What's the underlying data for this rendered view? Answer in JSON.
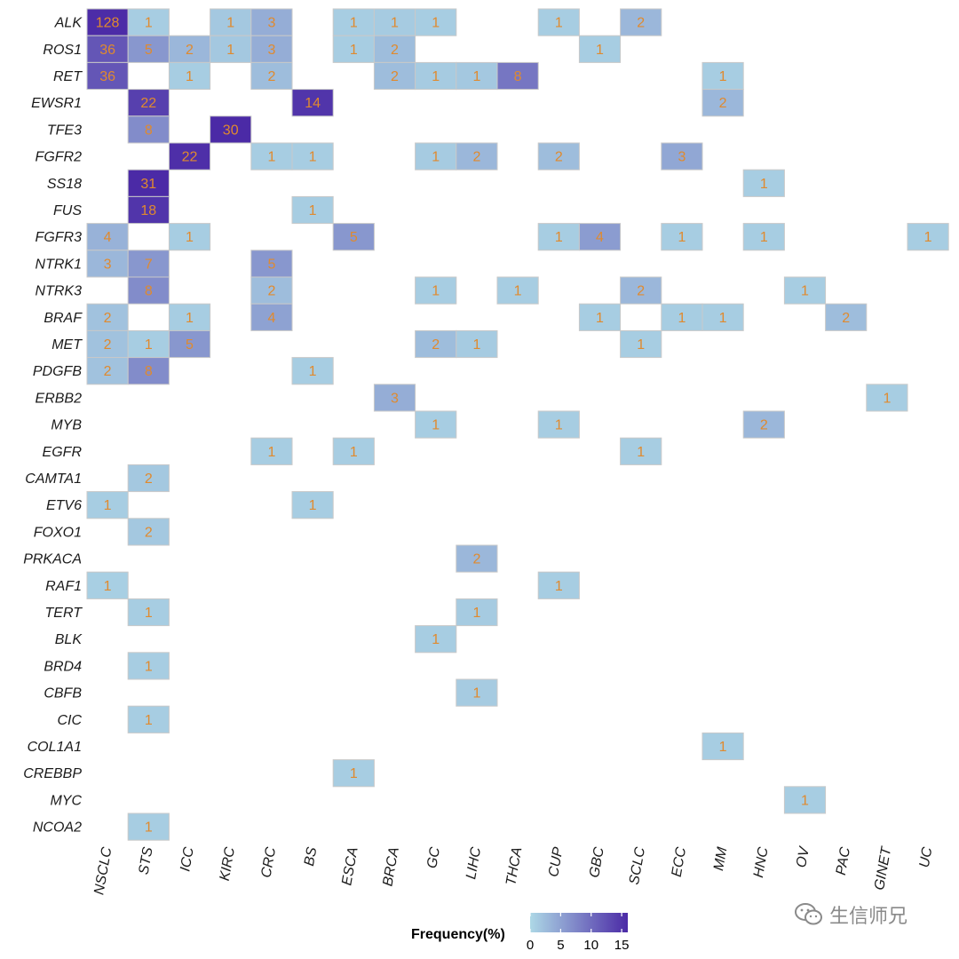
{
  "chart_data": {
    "type": "heatmap",
    "rows": [
      "ALK",
      "ROS1",
      "RET",
      "EWSR1",
      "TFE3",
      "FGFR2",
      "SS18",
      "FUS",
      "FGFR3",
      "NTRK1",
      "NTRK3",
      "BRAF",
      "MET",
      "PDGFB",
      "ERBB2",
      "MYB",
      "EGFR",
      "CAMTA1",
      "ETV6",
      "FOXO1",
      "PRKACA",
      "RAF1",
      "TERT",
      "BLK",
      "BRD4",
      "CBFB",
      "CIC",
      "COL1A1",
      "CREBBP",
      "MYC",
      "NCOA2"
    ],
    "columns": [
      "NSCLC",
      "STS",
      "ICC",
      "KIRC",
      "CRC",
      "BS",
      "ESCA",
      "BRCA",
      "GC",
      "LIHC",
      "THCA",
      "CUP",
      "GBC",
      "SCLC",
      "ECC",
      "MM",
      "HNC",
      "OV",
      "PAC",
      "GINET",
      "UC"
    ],
    "cells": [
      {
        "row": "ALK",
        "col": "NSCLC",
        "count": 128,
        "freq": 15.8
      },
      {
        "row": "ALK",
        "col": "STS",
        "count": 1,
        "freq": 1
      },
      {
        "row": "ALK",
        "col": "KIRC",
        "count": 1,
        "freq": 1.5
      },
      {
        "row": "ALK",
        "col": "CRC",
        "count": 3,
        "freq": 4
      },
      {
        "row": "ALK",
        "col": "ESCA",
        "count": 1,
        "freq": 1
      },
      {
        "row": "ALK",
        "col": "BRCA",
        "count": 1,
        "freq": 1.2
      },
      {
        "row": "ALK",
        "col": "GC",
        "count": 1,
        "freq": 1
      },
      {
        "row": "ALK",
        "col": "CUP",
        "count": 1,
        "freq": 1
      },
      {
        "row": "ALK",
        "col": "SCLC",
        "count": 2,
        "freq": 3
      },
      {
        "row": "ROS1",
        "col": "NSCLC",
        "count": 36,
        "freq": 12
      },
      {
        "row": "ROS1",
        "col": "STS",
        "count": 5,
        "freq": 6
      },
      {
        "row": "ROS1",
        "col": "ICC",
        "count": 2,
        "freq": 3
      },
      {
        "row": "ROS1",
        "col": "KIRC",
        "count": 1,
        "freq": 1.5
      },
      {
        "row": "ROS1",
        "col": "CRC",
        "count": 3,
        "freq": 4
      },
      {
        "row": "ROS1",
        "col": "ESCA",
        "count": 1,
        "freq": 1
      },
      {
        "row": "ROS1",
        "col": "BRCA",
        "count": 2,
        "freq": 2.5
      },
      {
        "row": "ROS1",
        "col": "GBC",
        "count": 1,
        "freq": 1
      },
      {
        "row": "RET",
        "col": "NSCLC",
        "count": 36,
        "freq": 12
      },
      {
        "row": "RET",
        "col": "ICC",
        "count": 1,
        "freq": 1
      },
      {
        "row": "RET",
        "col": "CRC",
        "count": 2,
        "freq": 2.5
      },
      {
        "row": "RET",
        "col": "BRCA",
        "count": 2,
        "freq": 2.5
      },
      {
        "row": "RET",
        "col": "GC",
        "count": 1,
        "freq": 1.2
      },
      {
        "row": "RET",
        "col": "LIHC",
        "count": 1,
        "freq": 1.5
      },
      {
        "row": "RET",
        "col": "THCA",
        "count": 8,
        "freq": 9
      },
      {
        "row": "RET",
        "col": "MM",
        "count": 1,
        "freq": 1
      },
      {
        "row": "EWSR1",
        "col": "STS",
        "count": 22,
        "freq": 14
      },
      {
        "row": "EWSR1",
        "col": "BS",
        "count": 14,
        "freq": 15
      },
      {
        "row": "EWSR1",
        "col": "MM",
        "count": 2,
        "freq": 3
      },
      {
        "row": "TFE3",
        "col": "STS",
        "count": 8,
        "freq": 7
      },
      {
        "row": "TFE3",
        "col": "KIRC",
        "count": 30,
        "freq": 16
      },
      {
        "row": "FGFR2",
        "col": "ICC",
        "count": 22,
        "freq": 15.5
      },
      {
        "row": "FGFR2",
        "col": "CRC",
        "count": 1,
        "freq": 1
      },
      {
        "row": "FGFR2",
        "col": "BS",
        "count": 1,
        "freq": 1
      },
      {
        "row": "FGFR2",
        "col": "GC",
        "count": 1,
        "freq": 1.2
      },
      {
        "row": "FGFR2",
        "col": "LIHC",
        "count": 2,
        "freq": 3
      },
      {
        "row": "FGFR2",
        "col": "CUP",
        "count": 2,
        "freq": 2.5
      },
      {
        "row": "FGFR2",
        "col": "ECC",
        "count": 3,
        "freq": 4.5
      },
      {
        "row": "SS18",
        "col": "STS",
        "count": 31,
        "freq": 16
      },
      {
        "row": "SS18",
        "col": "HNC",
        "count": 1,
        "freq": 1
      },
      {
        "row": "FUS",
        "col": "STS",
        "count": 18,
        "freq": 15
      },
      {
        "row": "FUS",
        "col": "BS",
        "count": 1,
        "freq": 1
      },
      {
        "row": "FGFR3",
        "col": "NSCLC",
        "count": 4,
        "freq": 3.5
      },
      {
        "row": "FGFR3",
        "col": "ICC",
        "count": 1,
        "freq": 1
      },
      {
        "row": "FGFR3",
        "col": "ESCA",
        "count": 5,
        "freq": 6
      },
      {
        "row": "FGFR3",
        "col": "CUP",
        "count": 1,
        "freq": 1
      },
      {
        "row": "FGFR3",
        "col": "GBC",
        "count": 4,
        "freq": 5.5
      },
      {
        "row": "FGFR3",
        "col": "ECC",
        "count": 1,
        "freq": 1
      },
      {
        "row": "FGFR3",
        "col": "HNC",
        "count": 1,
        "freq": 1
      },
      {
        "row": "FGFR3",
        "col": "UC",
        "count": 1,
        "freq": 1
      },
      {
        "row": "NTRK1",
        "col": "NSCLC",
        "count": 3,
        "freq": 3
      },
      {
        "row": "NTRK1",
        "col": "STS",
        "count": 7,
        "freq": 6
      },
      {
        "row": "NTRK1",
        "col": "CRC",
        "count": 5,
        "freq": 6
      },
      {
        "row": "NTRK3",
        "col": "STS",
        "count": 8,
        "freq": 7
      },
      {
        "row": "NTRK3",
        "col": "CRC",
        "count": 2,
        "freq": 2.5
      },
      {
        "row": "NTRK3",
        "col": "GC",
        "count": 1,
        "freq": 1
      },
      {
        "row": "NTRK3",
        "col": "THCA",
        "count": 1,
        "freq": 1
      },
      {
        "row": "NTRK3",
        "col": "SCLC",
        "count": 2,
        "freq": 3
      },
      {
        "row": "NTRK3",
        "col": "OV",
        "count": 1,
        "freq": 1
      },
      {
        "row": "BRAF",
        "col": "NSCLC",
        "count": 2,
        "freq": 2
      },
      {
        "row": "BRAF",
        "col": "ICC",
        "count": 1,
        "freq": 1
      },
      {
        "row": "BRAF",
        "col": "CRC",
        "count": 4,
        "freq": 5
      },
      {
        "row": "BRAF",
        "col": "GBC",
        "count": 1,
        "freq": 1
      },
      {
        "row": "BRAF",
        "col": "ECC",
        "count": 1,
        "freq": 1
      },
      {
        "row": "BRAF",
        "col": "MM",
        "count": 1,
        "freq": 1
      },
      {
        "row": "BRAF",
        "col": "PAC",
        "count": 2,
        "freq": 2.5
      },
      {
        "row": "MET",
        "col": "NSCLC",
        "count": 2,
        "freq": 2
      },
      {
        "row": "MET",
        "col": "STS",
        "count": 1,
        "freq": 1
      },
      {
        "row": "MET",
        "col": "ICC",
        "count": 5,
        "freq": 6
      },
      {
        "row": "MET",
        "col": "GC",
        "count": 2,
        "freq": 2.5
      },
      {
        "row": "MET",
        "col": "LIHC",
        "count": 1,
        "freq": 1.2
      },
      {
        "row": "MET",
        "col": "SCLC",
        "count": 1,
        "freq": 1
      },
      {
        "row": "PDGFB",
        "col": "NSCLC",
        "count": 2,
        "freq": 2
      },
      {
        "row": "PDGFB",
        "col": "STS",
        "count": 8,
        "freq": 7
      },
      {
        "row": "PDGFB",
        "col": "BS",
        "count": 1,
        "freq": 1
      },
      {
        "row": "ERBB2",
        "col": "BRCA",
        "count": 3,
        "freq": 4
      },
      {
        "row": "ERBB2",
        "col": "GINET",
        "count": 1,
        "freq": 1
      },
      {
        "row": "MYB",
        "col": "GC",
        "count": 1,
        "freq": 1
      },
      {
        "row": "MYB",
        "col": "CUP",
        "count": 1,
        "freq": 1
      },
      {
        "row": "MYB",
        "col": "HNC",
        "count": 2,
        "freq": 3
      },
      {
        "row": "EGFR",
        "col": "CRC",
        "count": 1,
        "freq": 1
      },
      {
        "row": "EGFR",
        "col": "ESCA",
        "count": 1,
        "freq": 1
      },
      {
        "row": "EGFR",
        "col": "SCLC",
        "count": 1,
        "freq": 1
      },
      {
        "row": "CAMTA1",
        "col": "STS",
        "count": 2,
        "freq": 1.5
      },
      {
        "row": "ETV6",
        "col": "NSCLC",
        "count": 1,
        "freq": 1
      },
      {
        "row": "ETV6",
        "col": "BS",
        "count": 1,
        "freq": 1
      },
      {
        "row": "FOXO1",
        "col": "STS",
        "count": 2,
        "freq": 1.5
      },
      {
        "row": "PRKACA",
        "col": "LIHC",
        "count": 2,
        "freq": 3
      },
      {
        "row": "RAF1",
        "col": "NSCLC",
        "count": 1,
        "freq": 0.8
      },
      {
        "row": "RAF1",
        "col": "CUP",
        "count": 1,
        "freq": 1
      },
      {
        "row": "TERT",
        "col": "STS",
        "count": 1,
        "freq": 1
      },
      {
        "row": "TERT",
        "col": "LIHC",
        "count": 1,
        "freq": 1.2
      },
      {
        "row": "BLK",
        "col": "GC",
        "count": 1,
        "freq": 1
      },
      {
        "row": "BRD4",
        "col": "STS",
        "count": 1,
        "freq": 1
      },
      {
        "row": "CBFB",
        "col": "LIHC",
        "count": 1,
        "freq": 1.2
      },
      {
        "row": "CIC",
        "col": "STS",
        "count": 1,
        "freq": 1
      },
      {
        "row": "COL1A1",
        "col": "MM",
        "count": 1,
        "freq": 1
      },
      {
        "row": "CREBBP",
        "col": "ESCA",
        "count": 1,
        "freq": 1
      },
      {
        "row": "MYC",
        "col": "OV",
        "count": 1,
        "freq": 1
      },
      {
        "row": "NCOA2",
        "col": "STS",
        "count": 1,
        "freq": 1
      }
    ],
    "legend": {
      "title": "Frequency(%)",
      "ticks": [
        0,
        5,
        10,
        15
      ],
      "range": [
        0,
        16
      ],
      "low_color": "#add8e6",
      "high_color": "#4b2aa6",
      "position": "bottom"
    },
    "label_color": "#e08a2e"
  },
  "watermark": {
    "text": "生信师兄",
    "icon": "wechat-icon"
  }
}
